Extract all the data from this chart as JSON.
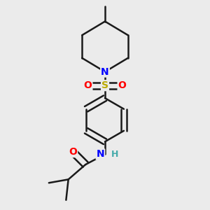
{
  "background_color": "#ebebeb",
  "bond_color": "#1a1a1a",
  "bond_width": 1.8,
  "atom_colors": {
    "N": "#0000ff",
    "S": "#bbaa00",
    "O": "#ff0000",
    "H": "#44aaaa",
    "C": "#1a1a1a"
  },
  "font_size_atom": 10,
  "font_size_h": 9
}
